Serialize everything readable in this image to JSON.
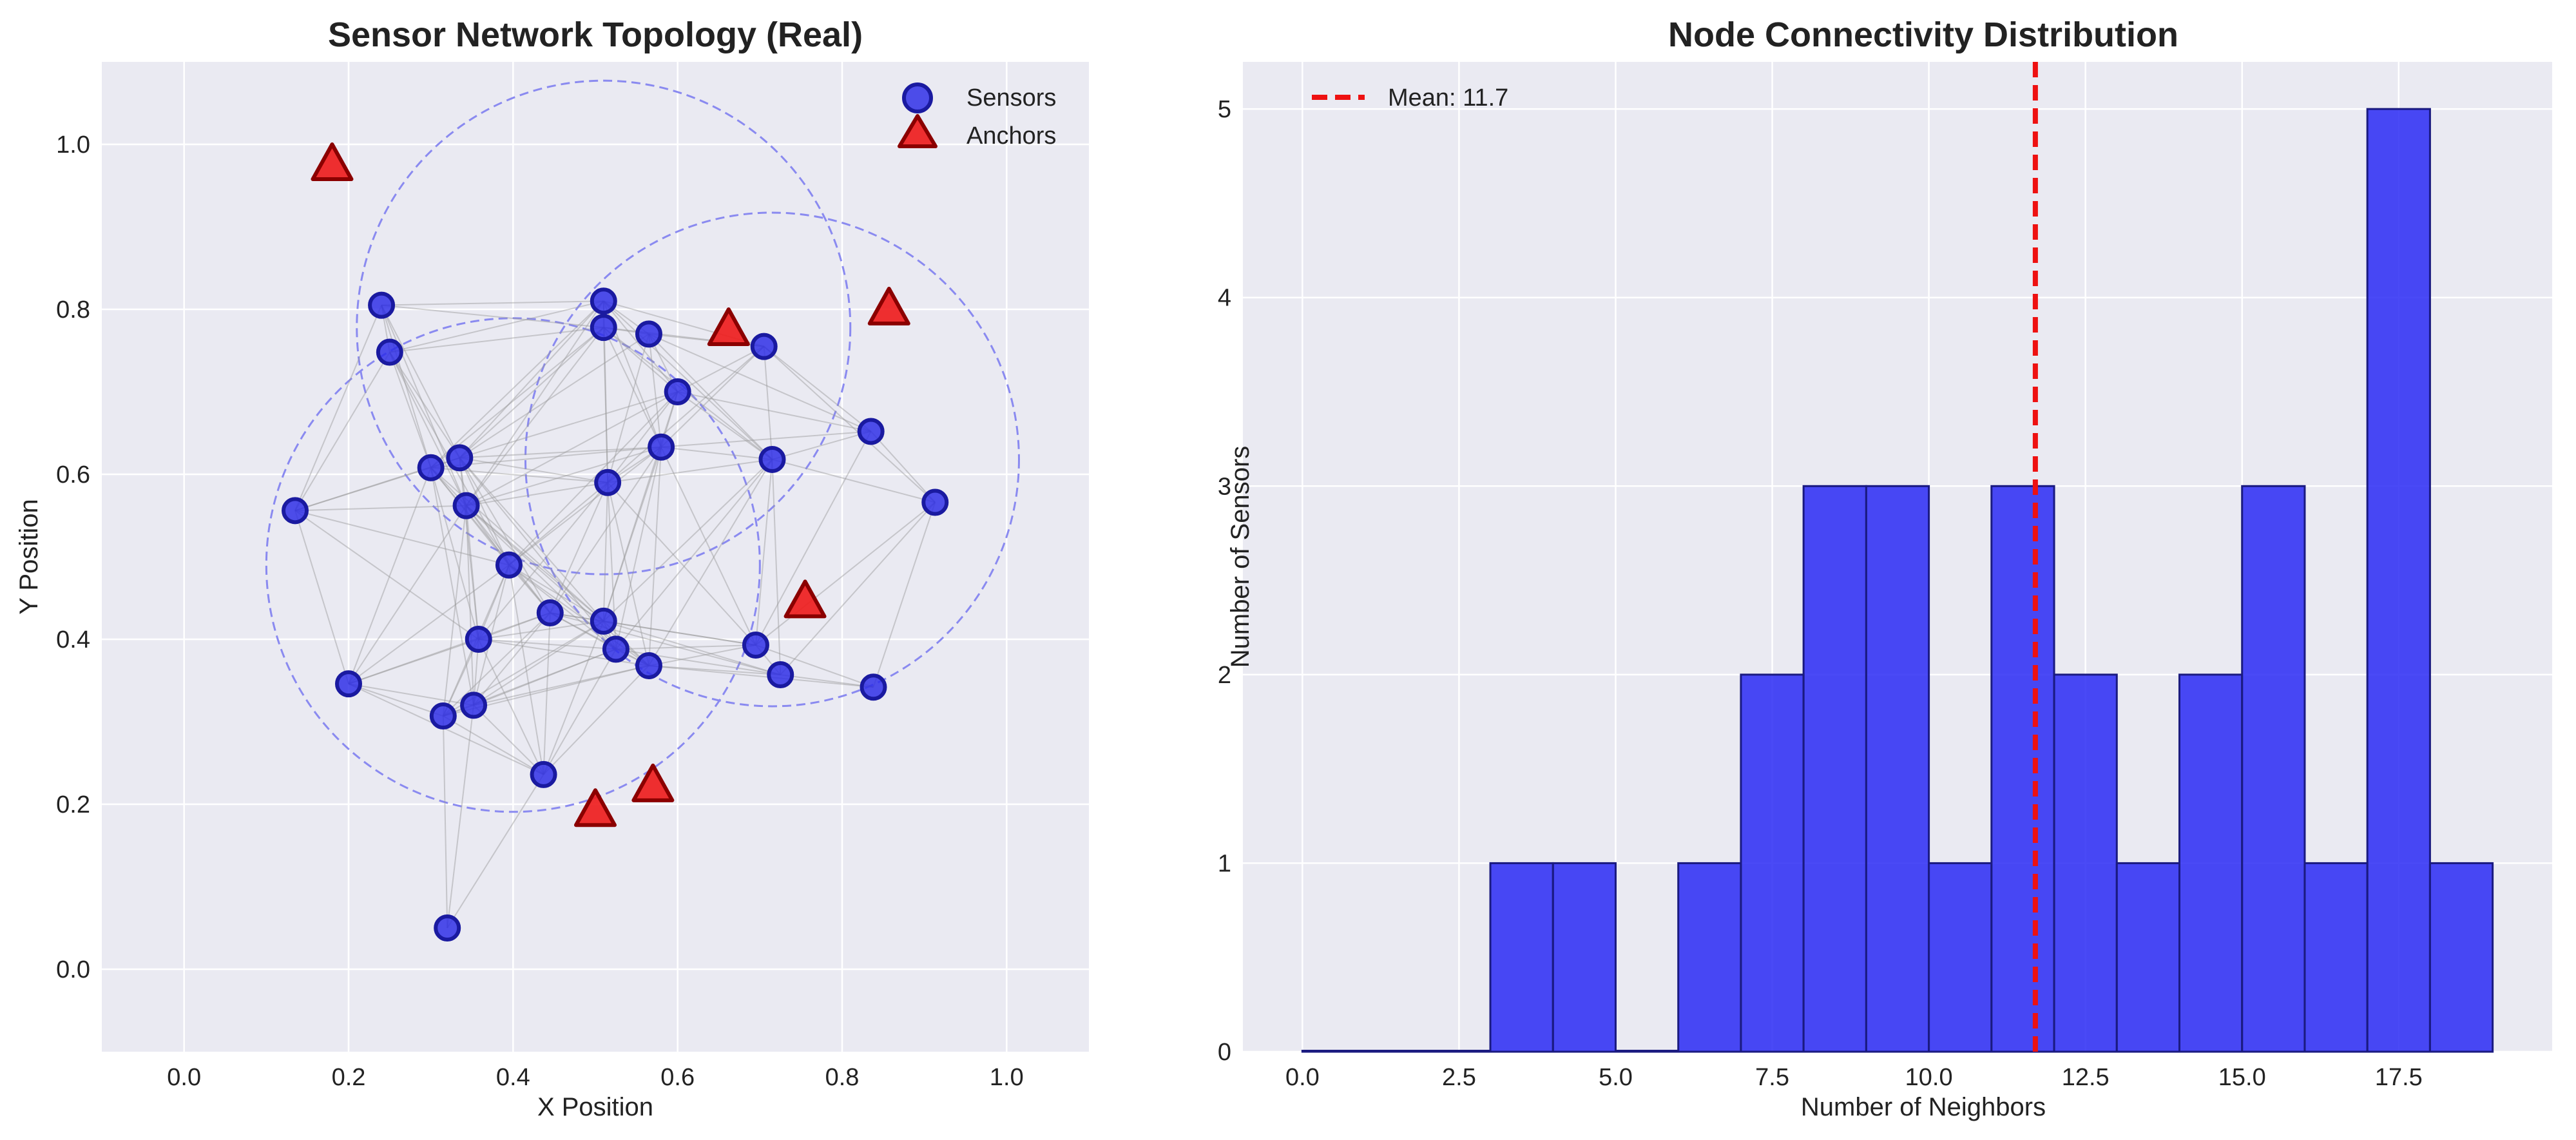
{
  "chart_data": [
    {
      "type": "scatter",
      "title": "Sensor Network Topology (Real)",
      "xlabel": "X Position",
      "ylabel": "Y Position",
      "xlim": [
        -0.1,
        1.1
      ],
      "ylim": [
        -0.1,
        1.1
      ],
      "xticks": [
        "0.0",
        "0.2",
        "0.4",
        "0.6",
        "0.8",
        "1.0"
      ],
      "yticks": [
        "0.0",
        "0.2",
        "0.4",
        "0.6",
        "0.8",
        "1.0"
      ],
      "grid": true,
      "legend": {
        "position": "upper right",
        "entries": [
          "Sensors",
          "Anchors"
        ]
      },
      "series": [
        {
          "name": "Sensors",
          "marker": "circle",
          "color": "#2a2ae6",
          "edge_color": "#1a1aa0",
          "points": [
            [
              0.24,
              0.805
            ],
            [
              0.25,
              0.748
            ],
            [
              0.51,
              0.81
            ],
            [
              0.51,
              0.778
            ],
            [
              0.565,
              0.77
            ],
            [
              0.705,
              0.755
            ],
            [
              0.6,
              0.7
            ],
            [
              0.835,
              0.652
            ],
            [
              0.335,
              0.62
            ],
            [
              0.3,
              0.608
            ],
            [
              0.58,
              0.633
            ],
            [
              0.715,
              0.618
            ],
            [
              0.515,
              0.59
            ],
            [
              0.135,
              0.556
            ],
            [
              0.343,
              0.562
            ],
            [
              0.913,
              0.566
            ],
            [
              0.395,
              0.49
            ],
            [
              0.445,
              0.432
            ],
            [
              0.51,
              0.422
            ],
            [
              0.358,
              0.4
            ],
            [
              0.525,
              0.388
            ],
            [
              0.695,
              0.393
            ],
            [
              0.565,
              0.368
            ],
            [
              0.725,
              0.357
            ],
            [
              0.2,
              0.346
            ],
            [
              0.838,
              0.342
            ],
            [
              0.352,
              0.32
            ],
            [
              0.315,
              0.307
            ],
            [
              0.437,
              0.236
            ],
            [
              0.32,
              0.05
            ]
          ]
        },
        {
          "name": "Anchors",
          "marker": "triangle",
          "color": "#ee1a1a",
          "edge_color": "#8b0000",
          "points": [
            [
              0.18,
              0.975
            ],
            [
              0.662,
              0.775
            ],
            [
              0.857,
              0.8
            ],
            [
              0.755,
              0.445
            ],
            [
              0.57,
              0.222
            ],
            [
              0.5,
              0.192
            ]
          ]
        }
      ],
      "range_circles": {
        "radius": 0.3,
        "color": "#8a8af0",
        "style": "dashed",
        "centers": [
          [
            0.51,
            0.778
          ],
          [
            0.715,
            0.618
          ],
          [
            0.4,
            0.49
          ]
        ]
      },
      "edge_color": "#999999"
    },
    {
      "type": "bar",
      "title": "Node Connectivity Distribution",
      "xlabel": "Number of Neighbors",
      "ylabel": "Number of Sensors",
      "xlim": [
        -0.95,
        19.95
      ],
      "ylim": [
        0,
        5.25
      ],
      "xticks": [
        "0.0",
        "2.5",
        "5.0",
        "7.5",
        "10.0",
        "12.5",
        "15.0",
        "17.5"
      ],
      "yticks": [
        "0",
        "1",
        "2",
        "3",
        "4",
        "5"
      ],
      "bin_edges": [
        0,
        1,
        2,
        3,
        4,
        5,
        6,
        7,
        8,
        9,
        10,
        11,
        12,
        13,
        14,
        15,
        16,
        17,
        18,
        19
      ],
      "values": [
        0,
        0,
        0,
        1,
        1,
        0,
        1,
        2,
        3,
        3,
        1,
        3,
        2,
        1,
        2,
        3,
        1,
        5,
        1
      ],
      "bar_color": "#2a2af5",
      "bar_edge_color": "#1a1a80",
      "mean_line": {
        "value": 11.7,
        "label": "Mean: 11.7",
        "color": "#ee1111",
        "style": "dashed"
      },
      "grid": true,
      "legend": {
        "position": "upper left",
        "entries": [
          "Mean: 11.7"
        ]
      }
    }
  ]
}
